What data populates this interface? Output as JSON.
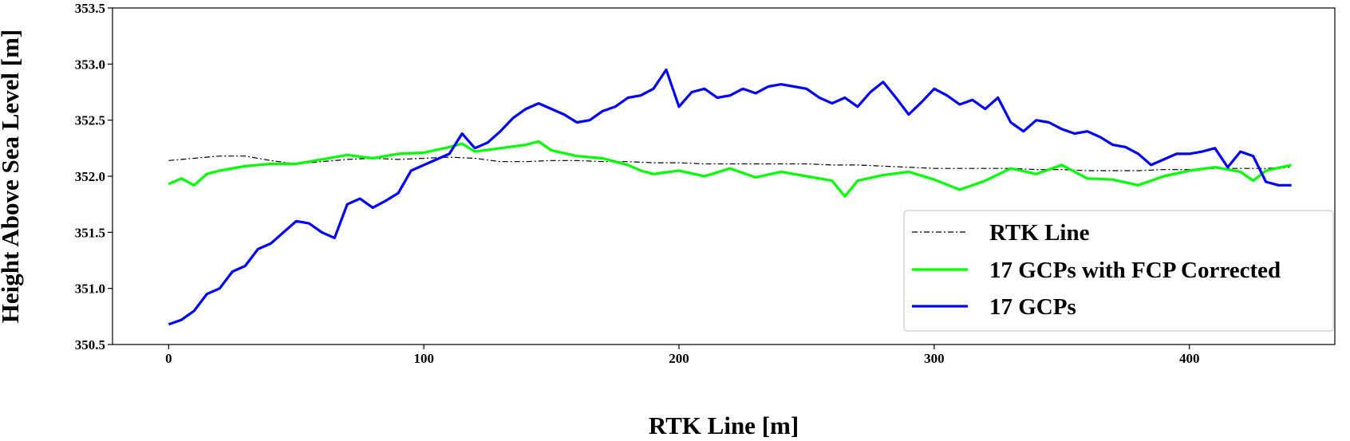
{
  "chart_data": {
    "type": "line",
    "xlabel": "RTK Line [m]",
    "ylabel": "Height Above Sea  Level [m]",
    "xlim": [
      -22,
      457
    ],
    "ylim": [
      350.5,
      353.5
    ],
    "x_ticks": [
      0,
      100,
      200,
      300,
      400
    ],
    "y_ticks": [
      350.5,
      351.0,
      351.5,
      352.0,
      352.5,
      353.0,
      353.5
    ],
    "x_tick_labels": [
      "0",
      "100",
      "200",
      "300",
      "400"
    ],
    "y_tick_labels": [
      "350.5",
      "351.0",
      "351.5",
      "352.0",
      "352.5",
      "353.0",
      "353.5"
    ],
    "grid": false,
    "legend_position": "lower-right",
    "series": [
      {
        "name": "RTK Line",
        "color": "#000000",
        "style": "dash-dot",
        "x": [
          0,
          10,
          20,
          30,
          40,
          50,
          60,
          70,
          80,
          90,
          100,
          110,
          120,
          130,
          140,
          150,
          160,
          170,
          180,
          190,
          200,
          210,
          220,
          230,
          240,
          250,
          260,
          270,
          280,
          290,
          300,
          310,
          320,
          330,
          340,
          350,
          360,
          370,
          380,
          390,
          400,
          410,
          420,
          430,
          440
        ],
        "y": [
          352.14,
          352.16,
          352.18,
          352.18,
          352.14,
          352.11,
          352.13,
          352.15,
          352.16,
          352.15,
          352.16,
          352.17,
          352.16,
          352.13,
          352.13,
          352.14,
          352.14,
          352.13,
          352.13,
          352.12,
          352.12,
          352.11,
          352.11,
          352.11,
          352.11,
          352.11,
          352.1,
          352.1,
          352.09,
          352.08,
          352.07,
          352.07,
          352.07,
          352.07,
          352.06,
          352.06,
          352.05,
          352.05,
          352.05,
          352.06,
          352.06,
          352.07,
          352.07,
          352.07,
          352.08
        ]
      },
      {
        "name": "17 GCPs with FCP Corrected",
        "color": "#00ff00",
        "style": "solid",
        "x": [
          0,
          5,
          10,
          15,
          20,
          30,
          40,
          50,
          60,
          70,
          80,
          90,
          100,
          110,
          115,
          120,
          130,
          140,
          145,
          150,
          160,
          170,
          180,
          185,
          190,
          200,
          210,
          220,
          230,
          240,
          250,
          260,
          265,
          270,
          280,
          290,
          300,
          310,
          320,
          330,
          340,
          350,
          360,
          370,
          380,
          390,
          400,
          410,
          420,
          425,
          430,
          440
        ],
        "y": [
          351.93,
          351.98,
          351.92,
          352.02,
          352.05,
          352.09,
          352.11,
          352.11,
          352.15,
          352.19,
          352.16,
          352.2,
          352.21,
          352.26,
          352.29,
          352.22,
          352.25,
          352.28,
          352.31,
          352.23,
          352.18,
          352.16,
          352.1,
          352.05,
          352.02,
          352.05,
          352.0,
          352.07,
          351.99,
          352.04,
          352.0,
          351.96,
          351.82,
          351.96,
          352.01,
          352.04,
          351.97,
          351.88,
          351.96,
          352.07,
          352.02,
          352.1,
          351.98,
          351.97,
          351.92,
          352.0,
          352.05,
          352.08,
          352.04,
          351.96,
          352.05,
          352.1
        ]
      },
      {
        "name": "17 GCPs",
        "color": "#0000ff",
        "style": "solid",
        "x": [
          0,
          5,
          10,
          15,
          20,
          25,
          30,
          35,
          40,
          45,
          50,
          55,
          60,
          65,
          70,
          75,
          80,
          85,
          90,
          95,
          100,
          105,
          110,
          115,
          120,
          125,
          130,
          135,
          140,
          145,
          150,
          155,
          160,
          165,
          170,
          175,
          180,
          185,
          190,
          195,
          200,
          205,
          210,
          215,
          220,
          225,
          230,
          235,
          240,
          245,
          250,
          255,
          260,
          265,
          270,
          275,
          280,
          285,
          290,
          295,
          300,
          305,
          310,
          315,
          320,
          325,
          330,
          335,
          340,
          345,
          350,
          355,
          360,
          365,
          370,
          375,
          380,
          385,
          390,
          395,
          400,
          405,
          410,
          415,
          420,
          425,
          430,
          435,
          440
        ],
        "y": [
          350.68,
          350.72,
          350.8,
          350.95,
          351.0,
          351.15,
          351.2,
          351.35,
          351.4,
          351.5,
          351.6,
          351.58,
          351.5,
          351.45,
          351.75,
          351.8,
          351.72,
          351.78,
          351.85,
          352.05,
          352.1,
          352.15,
          352.2,
          352.38,
          352.25,
          352.3,
          352.4,
          352.52,
          352.6,
          352.65,
          352.6,
          352.55,
          352.48,
          352.5,
          352.58,
          352.62,
          352.7,
          352.72,
          352.78,
          352.95,
          352.62,
          352.75,
          352.78,
          352.7,
          352.72,
          352.78,
          352.74,
          352.8,
          352.82,
          352.8,
          352.78,
          352.7,
          352.65,
          352.7,
          352.62,
          352.75,
          352.84,
          352.7,
          352.55,
          352.66,
          352.78,
          352.72,
          352.64,
          352.68,
          352.6,
          352.7,
          352.48,
          352.4,
          352.5,
          352.48,
          352.42,
          352.38,
          352.4,
          352.35,
          352.28,
          352.26,
          352.2,
          352.1,
          352.15,
          352.2,
          352.2,
          352.22,
          352.25,
          352.08,
          352.22,
          352.18,
          351.95,
          351.92,
          351.92
        ]
      }
    ]
  }
}
